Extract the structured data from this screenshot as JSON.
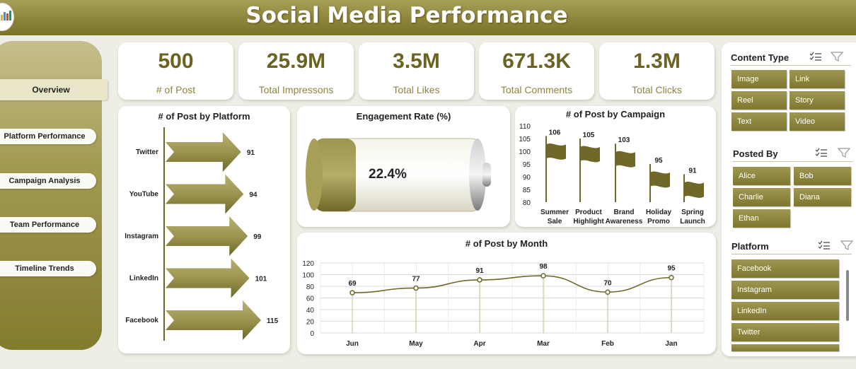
{
  "header": {
    "title": "Social Media Performance"
  },
  "sidebar": {
    "items": [
      {
        "label": "Overview",
        "active": true
      },
      {
        "label": "Platform Performance"
      },
      {
        "label": "Campaign Analysis"
      },
      {
        "label": "Team Performance"
      },
      {
        "label": "Timeline Trends"
      }
    ]
  },
  "kpis": [
    {
      "value": "500",
      "label": "# of Post"
    },
    {
      "value": "25.9M",
      "label": "Total Impressons"
    },
    {
      "value": "3.5M",
      "label": "Total Likes"
    },
    {
      "value": "671.3K",
      "label": "Total Comments"
    },
    {
      "value": "1.3M",
      "label": "Total Clicks"
    }
  ],
  "slicers": {
    "content_type": {
      "title": "Content Type",
      "options": [
        "Image",
        "Link",
        "Reel",
        "Story",
        "Text",
        "Video"
      ]
    },
    "posted_by": {
      "title": "Posted By",
      "options": [
        "Alice",
        "Bob",
        "Charlie",
        "Diana",
        "Ethan"
      ]
    },
    "platform": {
      "title": "Platform",
      "options": [
        "Facebook",
        "Instagram",
        "LinkedIn",
        "Twitter"
      ]
    }
  },
  "colors": {
    "accent": "#7e772f",
    "accent_light": "#a39a52",
    "header": "#8a8236",
    "text_kpi": "#6b6322"
  },
  "chart_data": [
    {
      "type": "bar",
      "title": "# of Post by Platform",
      "categories": [
        "Twitter",
        "YouTube",
        "Instagram",
        "LinkedIn",
        "Facebook"
      ],
      "values": [
        91,
        94,
        99,
        101,
        115
      ]
    },
    {
      "type": "gauge",
      "title": "Engagement Rate (%)",
      "value": 22.4,
      "value_label": "22.4%"
    },
    {
      "type": "bar",
      "title": "# of Post by Campaign",
      "categories": [
        "Summer Sale",
        "Product Highlight",
        "Brand Awareness",
        "Holiday Promo",
        "Spring Launch"
      ],
      "values": [
        106,
        105,
        103,
        95,
        91
      ],
      "ylim": [
        80,
        110
      ],
      "yticks": [
        80,
        85,
        90,
        95,
        100,
        105,
        110
      ]
    },
    {
      "type": "line",
      "title": "# of Post by Month",
      "categories": [
        "Jun",
        "May",
        "Apr",
        "Mar",
        "Feb",
        "Jan"
      ],
      "values": [
        69,
        77,
        91,
        98,
        70,
        95
      ],
      "ylim": [
        0,
        120
      ],
      "yticks": [
        0,
        20,
        40,
        60,
        80,
        100,
        120
      ],
      "grid": true
    }
  ]
}
